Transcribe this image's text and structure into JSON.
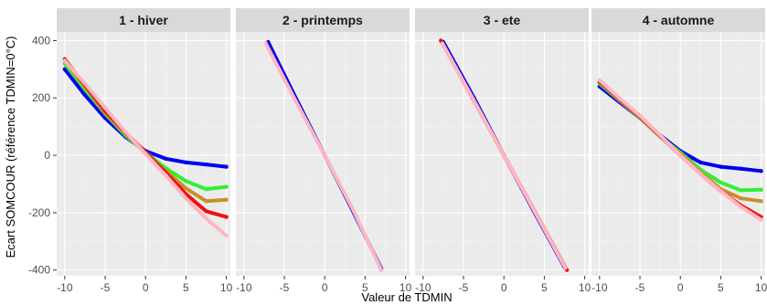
{
  "chart_data": {
    "type": "scatter",
    "xlabel": "Valeur de TDMIN",
    "ylabel": "Ecart SOMCOUR (référence TDMIN=0°C)",
    "xlim": [
      -11,
      10.5
    ],
    "ylim": [
      -420,
      430
    ],
    "x_ticks": [
      "-10",
      "-5",
      "0",
      "5",
      "10"
    ],
    "y_ticks": [
      "-400",
      "-200",
      "0",
      "200",
      "400"
    ],
    "grid": true,
    "legend": "none",
    "colors": {
      "blue": "#0000ee",
      "green": "#33ee33",
      "orange": "#c8902a",
      "red": "#ee1111",
      "pink": "#ffb6c1"
    },
    "panels": [
      {
        "title": "1 - hiver",
        "series": [
          {
            "color": "blue",
            "x": [
              -10,
              -7.5,
              -5,
              -2.5,
              0,
              2.5,
              5,
              7.5,
              10
            ],
            "y": [
              300,
              210,
              130,
              65,
              15,
              -12,
              -25,
              -32,
              -40
            ]
          },
          {
            "color": "green",
            "x": [
              -10,
              -7.5,
              -5,
              -2.5,
              0,
              2.5,
              5,
              7.5,
              10
            ],
            "y": [
              320,
              230,
              145,
              70,
              10,
              -45,
              -90,
              -118,
              -110
            ]
          },
          {
            "color": "orange",
            "x": [
              -10,
              -7.5,
              -5,
              -2.5,
              0,
              2.5,
              5,
              7.5,
              10
            ],
            "y": [
              330,
              240,
              150,
              75,
              10,
              -55,
              -115,
              -160,
              -155
            ]
          },
          {
            "color": "red",
            "x": [
              -10,
              -7.5,
              -5,
              -2.5,
              0,
              2.5,
              5,
              7.5,
              10
            ],
            "y": [
              335,
              245,
              155,
              80,
              10,
              -60,
              -135,
              -195,
              -215
            ]
          },
          {
            "color": "pink",
            "x": [
              -10,
              -7.5,
              -5,
              -2.5,
              0,
              2.5,
              5,
              7.5,
              10
            ],
            "y": [
              330,
              250,
              165,
              82,
              5,
              -70,
              -150,
              -220,
              -280
            ]
          }
        ]
      },
      {
        "title": "2 - printemps",
        "series": [
          {
            "color": "blue",
            "x": [
              -7,
              -3.5,
              0,
              3.5,
              7
            ],
            "y": [
              395,
              195,
              0,
              -195,
              -395
            ]
          },
          {
            "color": "pink",
            "x": [
              -7.3,
              -3.6,
              0,
              3.6,
              7
            ],
            "y": [
              390,
              190,
              0,
              -195,
              -400
            ]
          }
        ]
      },
      {
        "title": "3 - ete",
        "series": [
          {
            "color": "blue",
            "x": [
              -7.5,
              -3.7,
              0,
              3.7,
              7.5
            ],
            "y": [
              395,
              200,
              0,
              -195,
              -390
            ]
          },
          {
            "color": "red",
            "x": [
              -7.8,
              -3.9,
              0,
              3.9,
              7.8
            ],
            "y": [
              400,
              200,
              0,
              -200,
              -400
            ]
          },
          {
            "color": "pink",
            "x": [
              -7.6,
              -3.8,
              0,
              3.8,
              7.6
            ],
            "y": [
              390,
              196,
              0,
              -196,
              -392
            ]
          }
        ]
      },
      {
        "title": "4 - automne",
        "series": [
          {
            "color": "blue",
            "x": [
              -10,
              -7.5,
              -5,
              -2.5,
              0,
              2.5,
              5,
              7.5,
              10
            ],
            "y": [
              240,
              185,
              130,
              70,
              15,
              -25,
              -40,
              -47,
              -55
            ]
          },
          {
            "color": "green",
            "x": [
              -10,
              -7.5,
              -5,
              -2.5,
              0,
              2.5,
              5,
              7.5,
              10
            ],
            "y": [
              250,
              190,
              130,
              65,
              10,
              -50,
              -95,
              -122,
              -120
            ]
          },
          {
            "color": "orange",
            "x": [
              -10,
              -7.5,
              -5,
              -2.5,
              0,
              2.5,
              5,
              7.5,
              10
            ],
            "y": [
              255,
              192,
              132,
              66,
              5,
              -60,
              -118,
              -150,
              -160
            ]
          },
          {
            "color": "red",
            "x": [
              -10,
              -7.5,
              -5,
              -2.5,
              0,
              2.5,
              5,
              7.5,
              10
            ],
            "y": [
              258,
              195,
              135,
              68,
              0,
              -65,
              -125,
              -175,
              -215
            ]
          },
          {
            "color": "pink",
            "x": [
              -10,
              -7.5,
              -5,
              -2.5,
              0,
              2.5,
              5,
              7.5,
              10
            ],
            "y": [
              262,
              198,
              138,
              70,
              0,
              -65,
              -125,
              -180,
              -225
            ]
          }
        ]
      }
    ]
  }
}
